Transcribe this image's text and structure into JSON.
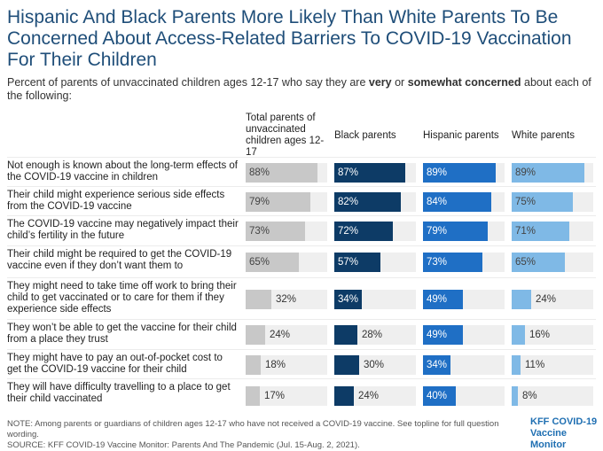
{
  "title": "Hispanic And Black Parents More Likely Than White Parents To Be Concerned About Access-Related Barriers To COVID-19 Vaccination For Their Children",
  "subtitle": {
    "part1": "Percent of parents of unvaccinated children ages 12-17 who say they are ",
    "bold1": "very",
    "part2": " or ",
    "bold2": "somewhat concerned",
    "part3": " about each of the following:"
  },
  "note": "NOTE: Among parents or guardians of children ages 12-17 who have not received a COVID-19 vaccine. See topline for full question wording.",
  "source": "SOURCE: KFF COVID-19 Vaccine Monitor: Parents And The Pandemic (Jul. 15-Aug. 2, 2021).",
  "brand": {
    "line1": "KFF COVID-19",
    "line2": "Vaccine Monitor"
  },
  "chart_data": {
    "type": "bar",
    "orientation": "horizontal",
    "unit": "%",
    "xlim": [
      0,
      100
    ],
    "categories": [
      "Not enough is known about the long-term effects of the COVID-19 vaccine in children",
      "Their child might experience serious side effects from the COVID-19 vaccine",
      "The COVID-19 vaccine may negatively impact their child’s fertility in the future",
      "Their child might be required to get the COVID-19 vaccine even if they don’t want them to",
      "They might need to take time off work to bring their child to get vaccinated or to care for them if they experience side effects",
      "They won’t be able to get the vaccine for their child from a place they trust",
      "They might have to pay an out-of-pocket cost to get the COVID-19 vaccine for their child",
      "They will have difficulty travelling to a place to get their child vaccinated"
    ],
    "series": [
      {
        "name": "Total parents of unvaccinated children ages 12-17",
        "color": "#c8c8c8",
        "label_color": "light",
        "values": [
          88,
          79,
          73,
          65,
          32,
          24,
          18,
          17
        ]
      },
      {
        "name": "Black parents",
        "color": "#0d3b66",
        "label_color": "dark",
        "values": [
          87,
          82,
          72,
          57,
          34,
          28,
          30,
          24
        ]
      },
      {
        "name": "Hispanic parents",
        "color": "#1f6fc5",
        "label_color": "dark",
        "values": [
          89,
          84,
          79,
          73,
          49,
          49,
          34,
          40
        ]
      },
      {
        "name": "White parents",
        "color": "#7fb9e6",
        "label_color": "light",
        "values": [
          89,
          75,
          71,
          65,
          24,
          16,
          11,
          8
        ]
      }
    ]
  }
}
